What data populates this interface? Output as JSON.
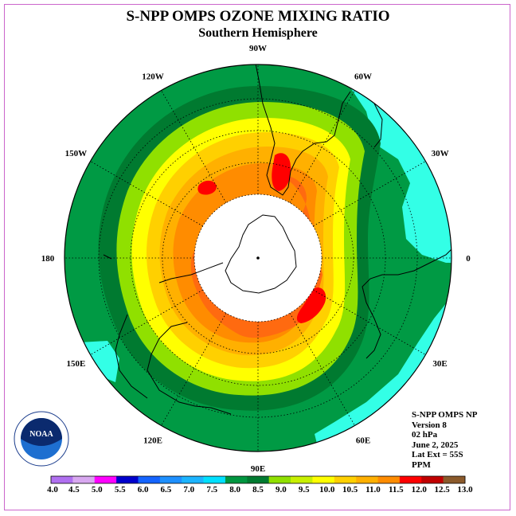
{
  "title": "S-NPP OMPS OZONE MIXING RATIO",
  "subtitle": "Southern Hemisphere",
  "longitude_labels": [
    {
      "label": "0",
      "lon": 0
    },
    {
      "label": "30W",
      "lon": -30
    },
    {
      "label": "60W",
      "lon": -60
    },
    {
      "label": "90W",
      "lon": -90
    },
    {
      "label": "120W",
      "lon": -120
    },
    {
      "label": "150W",
      "lon": -150
    },
    {
      "label": "180",
      "lon": 180
    },
    {
      "label": "150E",
      "lon": 150
    },
    {
      "label": "120E",
      "lon": 120
    },
    {
      "label": "90E",
      "lon": 90
    },
    {
      "label": "60E",
      "lon": 60
    },
    {
      "label": "30E",
      "lon": 30
    }
  ],
  "info_block": {
    "product": "S-NPP OMPS NP",
    "version": "Version 8",
    "level": "02 hPa",
    "date": "June 2, 2025",
    "lat_ext": "Lat Ext = 55S",
    "units": "PPM"
  },
  "colorbar": {
    "tick_labels": [
      "4.0",
      "4.5",
      "5.0",
      "5.5",
      "6.0",
      "6.5",
      "7.0",
      "7.5",
      "8.0",
      "8.5",
      "9.0",
      "9.5",
      "10.0",
      "10.5",
      "11.0",
      "11.5",
      "12.0",
      "12.5",
      "13.0"
    ],
    "colors": [
      "#b070f0",
      "#d8a8f0",
      "#ff00ff",
      "#0000cc",
      "#1464ff",
      "#1e90ff",
      "#1cb4ff",
      "#00e0ff",
      "#009640",
      "#007a30",
      "#90e000",
      "#c8f000",
      "#ffff00",
      "#ffd000",
      "#ffb000",
      "#ff8c00",
      "#ff0000",
      "#c00000",
      "#8b5a2b"
    ]
  },
  "map_colors": {
    "outer_green": "#009a44",
    "dark_green": "#007a30",
    "cyan": "#33ffe6",
    "lime": "#90e000",
    "yellow": "#ffff00",
    "gold": "#ffd000",
    "light_orange": "#ffb000",
    "orange": "#ff8c00",
    "red_orange": "#ff6a10",
    "red": "#ff0000",
    "polar_mask": "#ffffff"
  },
  "logo": {
    "text": "NOAA"
  }
}
